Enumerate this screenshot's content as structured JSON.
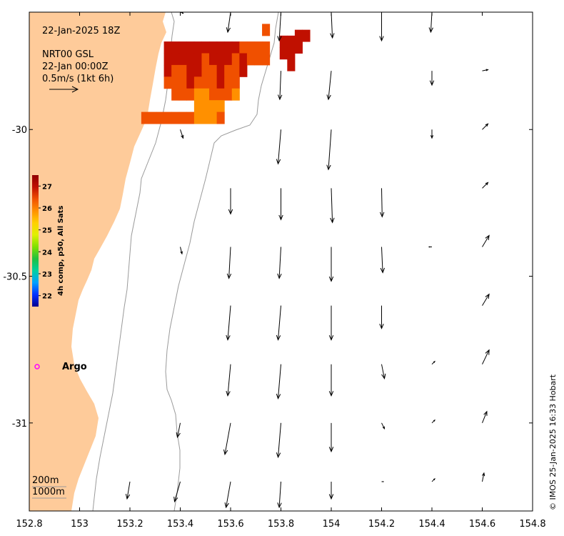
{
  "map": {
    "date_title": "22-Jan-2025 18Z",
    "product_line1": "NRT00 GSL",
    "product_line2": "22-Jan 00:00Z",
    "scale_label": "0.5m/s (1kt 6h)",
    "argo_label": "Argo",
    "isobath_labels": [
      "200m",
      "1000m"
    ],
    "credit": "© IMOS 25-Jan-2025 16:33 Hobart",
    "colors": {
      "land": "#fecb9a",
      "isobath": "#9a9a9a",
      "argo": "#ff00ff"
    }
  },
  "axes": {
    "x_ticks": [
      "152.8",
      "153",
      "153.2",
      "153.4",
      "153.6",
      "153.8",
      "154",
      "154.2",
      "154.4",
      "154.6",
      "154.8"
    ],
    "x_values": [
      152.8,
      153.0,
      153.2,
      153.4,
      153.6,
      153.8,
      154.0,
      154.2,
      154.4,
      154.6,
      154.8
    ],
    "y_ticks": [
      "-30",
      "-30.5",
      "-31"
    ],
    "y_values": [
      -30.0,
      -30.5,
      -31.0
    ],
    "lon_range": [
      152.8,
      154.8
    ],
    "lat_range": [
      -31.3,
      -29.6
    ]
  },
  "colorbar": {
    "title": "4h comp, p50, All Sats",
    "ticks": [
      "22",
      "23",
      "24",
      "25",
      "26",
      "27"
    ],
    "tick_values": [
      22,
      23,
      24,
      25,
      26,
      27
    ],
    "range": [
      21.5,
      27.5
    ],
    "colors": [
      "#00008f",
      "#0030ff",
      "#00a0ff",
      "#00d0a0",
      "#20c040",
      "#80e000",
      "#e0f000",
      "#ffd000",
      "#ff9000",
      "#f05000",
      "#c01000",
      "#900000"
    ]
  },
  "currents": {
    "lons": [
      153.0,
      153.2,
      153.4,
      153.6,
      153.8,
      154.0,
      154.2,
      154.4,
      154.6,
      154.8
    ],
    "rows": [
      {
        "lat": -29.6,
        "u": [
          0,
          0,
          0.05,
          -0.05,
          -0.03,
          0.02,
          0.0,
          -0.02,
          0.0,
          0.02
        ],
        "v": [
          0,
          0,
          -0.02,
          -0.35,
          -0.5,
          -0.45,
          -0.5,
          -0.35,
          0.0,
          0.0
        ]
      },
      {
        "lat": -29.8,
        "u": [
          0,
          0,
          0,
          0,
          -0.02,
          -0.05,
          0,
          0,
          0.1,
          0
        ],
        "v": [
          0,
          0,
          0,
          0,
          -0.5,
          -0.5,
          0,
          -0.25,
          0.02,
          0
        ]
      },
      {
        "lat": -30.0,
        "u": [
          0,
          0,
          0.05,
          0,
          -0.05,
          -0.05,
          0,
          0,
          0.1,
          0
        ],
        "v": [
          0,
          0,
          -0.15,
          0,
          -0.6,
          -0.7,
          0,
          -0.15,
          0.1,
          0
        ]
      },
      {
        "lat": -30.2,
        "u": [
          0,
          0,
          0,
          0,
          0,
          0.02,
          0.01,
          0,
          0.1,
          0
        ],
        "v": [
          0,
          0,
          0,
          -0.45,
          -0.55,
          -0.6,
          -0.5,
          0,
          0.1,
          0
        ]
      },
      {
        "lat": -30.4,
        "u": [
          0,
          0,
          0.03,
          -0.03,
          -0.03,
          0,
          0.02,
          -0.05,
          0.12,
          0
        ],
        "v": [
          0,
          0,
          -0.12,
          -0.55,
          -0.55,
          -0.6,
          -0.45,
          0.0,
          0.2,
          0
        ]
      },
      {
        "lat": -30.6,
        "u": [
          0,
          0,
          0,
          -0.05,
          -0.05,
          0,
          0,
          0,
          0.12,
          0
        ],
        "v": [
          0,
          0,
          0,
          -0.6,
          -0.6,
          -0.6,
          -0.4,
          0,
          0.2,
          0
        ]
      },
      {
        "lat": -30.8,
        "u": [
          0,
          0,
          0,
          -0.05,
          -0.05,
          0,
          0.05,
          0.05,
          0.12,
          0
        ],
        "v": [
          0,
          0,
          0,
          -0.55,
          -0.6,
          -0.55,
          -0.25,
          0.05,
          0.25,
          0
        ]
      },
      {
        "lat": -31.0,
        "u": [
          0,
          0,
          -0.05,
          -0.1,
          -0.05,
          0,
          0.05,
          0.05,
          0.08,
          0
        ],
        "v": [
          0,
          0,
          -0.25,
          -0.55,
          -0.6,
          -0.5,
          -0.1,
          0.05,
          0.2,
          0
        ]
      },
      {
        "lat": -31.2,
        "u": [
          0,
          -0.05,
          -0.1,
          -0.08,
          -0.03,
          0,
          0.03,
          0.05,
          0.03,
          0
        ],
        "v": [
          0,
          -0.3,
          -0.35,
          -0.45,
          -0.45,
          -0.3,
          0,
          0.05,
          0.15,
          0
        ]
      }
    ]
  },
  "sst": {
    "cells": [
      {
        "lon": 153.35,
        "lat": -29.72,
        "v": 27.0
      },
      {
        "lon": 153.38,
        "lat": -29.72,
        "v": 27.0
      },
      {
        "lon": 153.41,
        "lat": -29.72,
        "v": 26.9
      },
      {
        "lon": 153.44,
        "lat": -29.72,
        "v": 27.0
      },
      {
        "lon": 153.47,
        "lat": -29.72,
        "v": 27.0
      },
      {
        "lon": 153.5,
        "lat": -29.72,
        "v": 26.8
      },
      {
        "lon": 153.53,
        "lat": -29.72,
        "v": 26.7
      },
      {
        "lon": 153.56,
        "lat": -29.72,
        "v": 26.9
      },
      {
        "lon": 153.59,
        "lat": -29.72,
        "v": 27.0
      },
      {
        "lon": 153.62,
        "lat": -29.72,
        "v": 26.8
      },
      {
        "lon": 153.65,
        "lat": -29.72,
        "v": 26.6
      },
      {
        "lon": 153.68,
        "lat": -29.72,
        "v": 26.5
      },
      {
        "lon": 153.71,
        "lat": -29.72,
        "v": 26.4
      },
      {
        "lon": 153.74,
        "lat": -29.72,
        "v": 26.6
      },
      {
        "lon": 153.35,
        "lat": -29.76,
        "v": 27.0
      },
      {
        "lon": 153.38,
        "lat": -29.76,
        "v": 26.8
      },
      {
        "lon": 153.41,
        "lat": -29.76,
        "v": 26.7
      },
      {
        "lon": 153.44,
        "lat": -29.76,
        "v": 26.9
      },
      {
        "lon": 153.47,
        "lat": -29.76,
        "v": 26.8
      },
      {
        "lon": 153.5,
        "lat": -29.76,
        "v": 26.6
      },
      {
        "lon": 153.53,
        "lat": -29.76,
        "v": 26.9
      },
      {
        "lon": 153.56,
        "lat": -29.76,
        "v": 27.0
      },
      {
        "lon": 153.59,
        "lat": -29.76,
        "v": 26.7
      },
      {
        "lon": 153.62,
        "lat": -29.76,
        "v": 26.5
      },
      {
        "lon": 153.65,
        "lat": -29.76,
        "v": 26.8
      },
      {
        "lon": 153.68,
        "lat": -29.76,
        "v": 26.6
      },
      {
        "lon": 153.71,
        "lat": -29.76,
        "v": 26.3
      },
      {
        "lon": 153.74,
        "lat": -29.76,
        "v": 26.5
      },
      {
        "lon": 153.35,
        "lat": -29.8,
        "v": 26.8
      },
      {
        "lon": 153.38,
        "lat": -29.8,
        "v": 26.6
      },
      {
        "lon": 153.41,
        "lat": -29.8,
        "v": 26.5
      },
      {
        "lon": 153.44,
        "lat": -29.8,
        "v": 26.7
      },
      {
        "lon": 153.47,
        "lat": -29.8,
        "v": 26.9
      },
      {
        "lon": 153.5,
        "lat": -29.8,
        "v": 26.5
      },
      {
        "lon": 153.53,
        "lat": -29.8,
        "v": 26.6
      },
      {
        "lon": 153.56,
        "lat": -29.8,
        "v": 26.8
      },
      {
        "lon": 153.59,
        "lat": -29.8,
        "v": 26.4
      },
      {
        "lon": 153.62,
        "lat": -29.8,
        "v": 26.6
      },
      {
        "lon": 153.65,
        "lat": -29.8,
        "v": 26.9
      },
      {
        "lon": 153.35,
        "lat": -29.84,
        "v": 26.6
      },
      {
        "lon": 153.38,
        "lat": -29.84,
        "v": 26.4
      },
      {
        "lon": 153.41,
        "lat": -29.84,
        "v": 26.6
      },
      {
        "lon": 153.44,
        "lat": -29.84,
        "v": 26.8
      },
      {
        "lon": 153.47,
        "lat": -29.84,
        "v": 26.5
      },
      {
        "lon": 153.5,
        "lat": -29.84,
        "v": 26.3
      },
      {
        "lon": 153.53,
        "lat": -29.84,
        "v": 26.5
      },
      {
        "lon": 153.56,
        "lat": -29.84,
        "v": 26.7
      },
      {
        "lon": 153.59,
        "lat": -29.84,
        "v": 26.3
      },
      {
        "lon": 153.62,
        "lat": -29.84,
        "v": 26.5
      },
      {
        "lon": 153.38,
        "lat": -29.88,
        "v": 26.4
      },
      {
        "lon": 153.41,
        "lat": -29.88,
        "v": 26.2
      },
      {
        "lon": 153.44,
        "lat": -29.88,
        "v": 26.4
      },
      {
        "lon": 153.47,
        "lat": -29.88,
        "v": 26.1
      },
      {
        "lon": 153.5,
        "lat": -29.88,
        "v": 26.0
      },
      {
        "lon": 153.53,
        "lat": -29.88,
        "v": 26.2
      },
      {
        "lon": 153.56,
        "lat": -29.88,
        "v": 26.4
      },
      {
        "lon": 153.59,
        "lat": -29.88,
        "v": 26.2
      },
      {
        "lon": 153.62,
        "lat": -29.88,
        "v": 25.6
      },
      {
        "lon": 153.47,
        "lat": -29.92,
        "v": 25.9
      },
      {
        "lon": 153.5,
        "lat": -29.92,
        "v": 25.8
      },
      {
        "lon": 153.53,
        "lat": -29.92,
        "v": 26.0
      },
      {
        "lon": 153.56,
        "lat": -29.92,
        "v": 26.1
      },
      {
        "lon": 153.26,
        "lat": -29.96,
        "v": 26.3
      },
      {
        "lon": 153.29,
        "lat": -29.96,
        "v": 26.2
      },
      {
        "lon": 153.32,
        "lat": -29.96,
        "v": 26.4
      },
      {
        "lon": 153.35,
        "lat": -29.96,
        "v": 26.3
      },
      {
        "lon": 153.38,
        "lat": -29.96,
        "v": 26.4
      },
      {
        "lon": 153.41,
        "lat": -29.96,
        "v": 26.2
      },
      {
        "lon": 153.44,
        "lat": -29.96,
        "v": 26.3
      },
      {
        "lon": 153.47,
        "lat": -29.96,
        "v": 26.0
      },
      {
        "lon": 153.5,
        "lat": -29.96,
        "v": 25.9
      },
      {
        "lon": 153.53,
        "lat": -29.96,
        "v": 26.1
      },
      {
        "lon": 153.56,
        "lat": -29.96,
        "v": 26.2
      },
      {
        "lon": 153.74,
        "lat": -29.66,
        "v": 26.6
      },
      {
        "lon": 153.81,
        "lat": -29.7,
        "v": 27.0
      },
      {
        "lon": 153.84,
        "lat": -29.7,
        "v": 27.0
      },
      {
        "lon": 153.87,
        "lat": -29.68,
        "v": 27.0
      },
      {
        "lon": 153.9,
        "lat": -29.68,
        "v": 27.0
      },
      {
        "lon": 153.81,
        "lat": -29.74,
        "v": 27.0
      },
      {
        "lon": 153.84,
        "lat": -29.74,
        "v": 27.0
      },
      {
        "lon": 153.87,
        "lat": -29.72,
        "v": 27.0
      },
      {
        "lon": 153.84,
        "lat": -29.78,
        "v": 27.0
      }
    ]
  }
}
